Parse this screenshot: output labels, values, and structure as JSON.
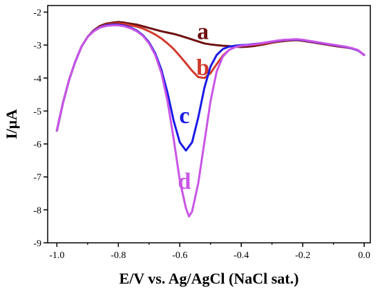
{
  "chart_data": {
    "type": "line",
    "title": "",
    "xlabel": "E/V vs. Ag/AgCl (NaCl sat.)",
    "ylabel": "I/µA",
    "xlim": [
      -1.03,
      0.02
    ],
    "ylim": [
      -9,
      -1.8
    ],
    "x_ticks": [
      -1.0,
      -0.8,
      -0.6,
      -0.4,
      -0.2,
      0.0
    ],
    "x_tick_labels": [
      "-1.0",
      "-0.8",
      "-0.6",
      "-0.4",
      "-0.2",
      "0.0"
    ],
    "y_ticks": [
      -9,
      -8,
      -7,
      -6,
      -5,
      -4,
      -3,
      -2
    ],
    "y_tick_labels": [
      "-9",
      "-8",
      "-7",
      "-6",
      "-5",
      "-4",
      "-3",
      "-2"
    ],
    "grid": false,
    "legend": "none",
    "series": [
      {
        "name": "a",
        "color": "#6e1010",
        "x": [
          -1.0,
          -0.98,
          -0.96,
          -0.94,
          -0.92,
          -0.9,
          -0.88,
          -0.86,
          -0.84,
          -0.82,
          -0.8,
          -0.78,
          -0.76,
          -0.74,
          -0.72,
          -0.7,
          -0.68,
          -0.66,
          -0.64,
          -0.62,
          -0.6,
          -0.58,
          -0.56,
          -0.54,
          -0.52,
          -0.5,
          -0.48,
          -0.46,
          -0.44,
          -0.42,
          -0.4,
          -0.38,
          -0.36,
          -0.34,
          -0.32,
          -0.3,
          -0.28,
          -0.26,
          -0.24,
          -0.22,
          -0.2,
          -0.18,
          -0.16,
          -0.14,
          -0.12,
          -0.1,
          -0.08,
          -0.06,
          -0.04,
          -0.02,
          0.0
        ],
        "y": [
          -5.6,
          -4.75,
          -4.05,
          -3.5,
          -3.05,
          -2.75,
          -2.55,
          -2.42,
          -2.35,
          -2.32,
          -2.3,
          -2.32,
          -2.35,
          -2.38,
          -2.43,
          -2.48,
          -2.53,
          -2.58,
          -2.62,
          -2.66,
          -2.71,
          -2.77,
          -2.83,
          -2.89,
          -2.95,
          -2.98,
          -3.0,
          -3.02,
          -3.03,
          -3.05,
          -3.06,
          -3.05,
          -3.03,
          -3.0,
          -2.97,
          -2.93,
          -2.9,
          -2.88,
          -2.86,
          -2.85,
          -2.87,
          -2.9,
          -2.93,
          -2.96,
          -2.99,
          -3.02,
          -3.05,
          -3.07,
          -3.1,
          -3.16,
          -3.3
        ]
      },
      {
        "name": "b",
        "color": "#d03a2c",
        "x": [
          -1.0,
          -0.98,
          -0.96,
          -0.94,
          -0.92,
          -0.9,
          -0.88,
          -0.86,
          -0.84,
          -0.82,
          -0.8,
          -0.78,
          -0.76,
          -0.74,
          -0.72,
          -0.7,
          -0.68,
          -0.66,
          -0.64,
          -0.62,
          -0.6,
          -0.58,
          -0.56,
          -0.54,
          -0.52,
          -0.5,
          -0.48,
          -0.46,
          -0.44,
          -0.42,
          -0.4,
          -0.38,
          -0.36,
          -0.34,
          -0.32,
          -0.3,
          -0.28,
          -0.26,
          -0.24,
          -0.22,
          -0.2,
          -0.18,
          -0.16,
          -0.14,
          -0.12,
          -0.1,
          -0.08,
          -0.06,
          -0.04,
          -0.02,
          0.0
        ],
        "y": [
          -5.6,
          -4.75,
          -4.05,
          -3.5,
          -3.05,
          -2.75,
          -2.56,
          -2.44,
          -2.38,
          -2.35,
          -2.34,
          -2.36,
          -2.4,
          -2.44,
          -2.5,
          -2.58,
          -2.68,
          -2.8,
          -2.95,
          -3.12,
          -3.33,
          -3.55,
          -3.78,
          -3.97,
          -4.0,
          -3.85,
          -3.58,
          -3.32,
          -3.15,
          -3.06,
          -3.02,
          -3.0,
          -2.99,
          -2.97,
          -2.95,
          -2.92,
          -2.89,
          -2.87,
          -2.85,
          -2.84,
          -2.86,
          -2.89,
          -2.92,
          -2.95,
          -2.98,
          -3.01,
          -3.04,
          -3.07,
          -3.1,
          -3.16,
          -3.3
        ]
      },
      {
        "name": "c",
        "color": "#1a1ae6",
        "x": [
          -1.0,
          -0.98,
          -0.96,
          -0.94,
          -0.92,
          -0.9,
          -0.88,
          -0.86,
          -0.84,
          -0.82,
          -0.8,
          -0.78,
          -0.76,
          -0.74,
          -0.72,
          -0.7,
          -0.68,
          -0.66,
          -0.64,
          -0.62,
          -0.6,
          -0.58,
          -0.56,
          -0.54,
          -0.52,
          -0.5,
          -0.48,
          -0.46,
          -0.44,
          -0.42,
          -0.4,
          -0.38,
          -0.36,
          -0.34,
          -0.32,
          -0.3,
          -0.28,
          -0.26,
          -0.24,
          -0.22,
          -0.2,
          -0.18,
          -0.16,
          -0.14,
          -0.12,
          -0.1,
          -0.08,
          -0.06,
          -0.04,
          -0.02,
          0.0
        ],
        "y": [
          -5.6,
          -4.75,
          -4.05,
          -3.5,
          -3.05,
          -2.75,
          -2.57,
          -2.46,
          -2.4,
          -2.38,
          -2.38,
          -2.41,
          -2.47,
          -2.56,
          -2.7,
          -2.92,
          -3.25,
          -3.75,
          -4.45,
          -5.3,
          -5.95,
          -6.2,
          -5.95,
          -5.2,
          -4.3,
          -3.65,
          -3.3,
          -3.12,
          -3.05,
          -3.02,
          -3.0,
          -2.99,
          -2.97,
          -2.95,
          -2.92,
          -2.9,
          -2.87,
          -2.85,
          -2.84,
          -2.83,
          -2.85,
          -2.88,
          -2.91,
          -2.94,
          -2.97,
          -3.0,
          -3.03,
          -3.06,
          -3.1,
          -3.16,
          -3.3
        ]
      },
      {
        "name": "d",
        "color": "#c855e6",
        "x": [
          -1.0,
          -0.98,
          -0.96,
          -0.94,
          -0.92,
          -0.9,
          -0.88,
          -0.86,
          -0.84,
          -0.82,
          -0.8,
          -0.78,
          -0.76,
          -0.74,
          -0.72,
          -0.7,
          -0.68,
          -0.66,
          -0.64,
          -0.62,
          -0.6,
          -0.58,
          -0.57,
          -0.56,
          -0.54,
          -0.52,
          -0.5,
          -0.48,
          -0.46,
          -0.44,
          -0.42,
          -0.4,
          -0.38,
          -0.36,
          -0.34,
          -0.32,
          -0.3,
          -0.28,
          -0.26,
          -0.24,
          -0.22,
          -0.2,
          -0.18,
          -0.16,
          -0.14,
          -0.12,
          -0.1,
          -0.08,
          -0.06,
          -0.04,
          -0.02,
          0.0
        ],
        "y": [
          -5.6,
          -4.75,
          -4.05,
          -3.5,
          -3.05,
          -2.75,
          -2.58,
          -2.47,
          -2.42,
          -2.4,
          -2.4,
          -2.43,
          -2.49,
          -2.58,
          -2.72,
          -2.95,
          -3.3,
          -3.85,
          -4.7,
          -5.85,
          -7.1,
          -7.95,
          -8.2,
          -8.05,
          -7.2,
          -5.95,
          -4.7,
          -3.8,
          -3.35,
          -3.15,
          -3.06,
          -3.02,
          -3.0,
          -2.98,
          -2.95,
          -2.92,
          -2.89,
          -2.86,
          -2.84,
          -2.83,
          -2.82,
          -2.84,
          -2.87,
          -2.9,
          -2.93,
          -2.96,
          -2.99,
          -3.02,
          -3.05,
          -3.09,
          -3.15,
          -3.3
        ]
      }
    ],
    "annotations": [
      {
        "text": "a",
        "x": -0.525,
        "y": -2.65,
        "color": "#6e1010"
      },
      {
        "text": "b",
        "x": -0.525,
        "y": -3.75,
        "color": "#d03a2c"
      },
      {
        "text": "c",
        "x": -0.585,
        "y": -5.2,
        "color": "#1a1ae6"
      },
      {
        "text": "d",
        "x": -0.585,
        "y": -7.2,
        "color": "#c855e6"
      }
    ]
  }
}
